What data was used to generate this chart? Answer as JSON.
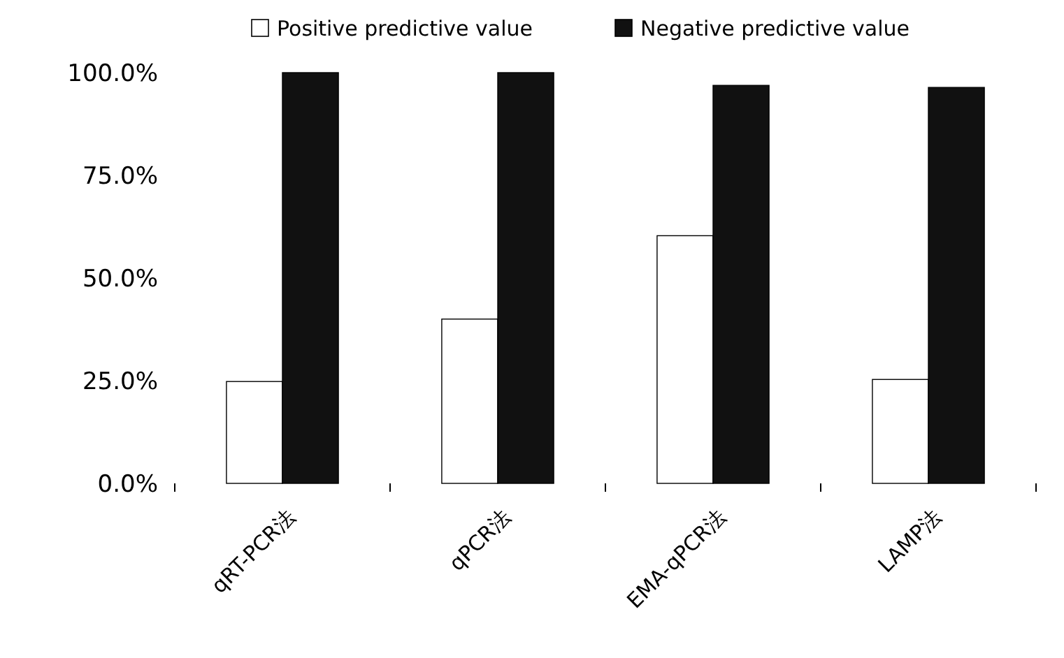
{
  "chart_data": {
    "type": "bar",
    "categories": [
      "qRT-PCR法",
      "qPCR法",
      "EMA-qPCR法",
      "LAMP法"
    ],
    "series": [
      {
        "name": "Positive predictive value",
        "color": "#ffffff",
        "values": [
          24.8,
          40,
          60.3,
          25.3
        ]
      },
      {
        "name": "Negative predictive value",
        "color": "#111111",
        "values": [
          100,
          100,
          96.9,
          96.4
        ]
      }
    ],
    "ylim": [
      0,
      100
    ],
    "yticks": [
      {
        "value": 0,
        "label": "0.0%"
      },
      {
        "value": 25,
        "label": "25.0%"
      },
      {
        "value": 50,
        "label": "50.0%"
      },
      {
        "value": 75,
        "label": "75.0%"
      },
      {
        "value": 100,
        "label": "100.0%"
      }
    ],
    "grid": false,
    "legend": "top"
  }
}
